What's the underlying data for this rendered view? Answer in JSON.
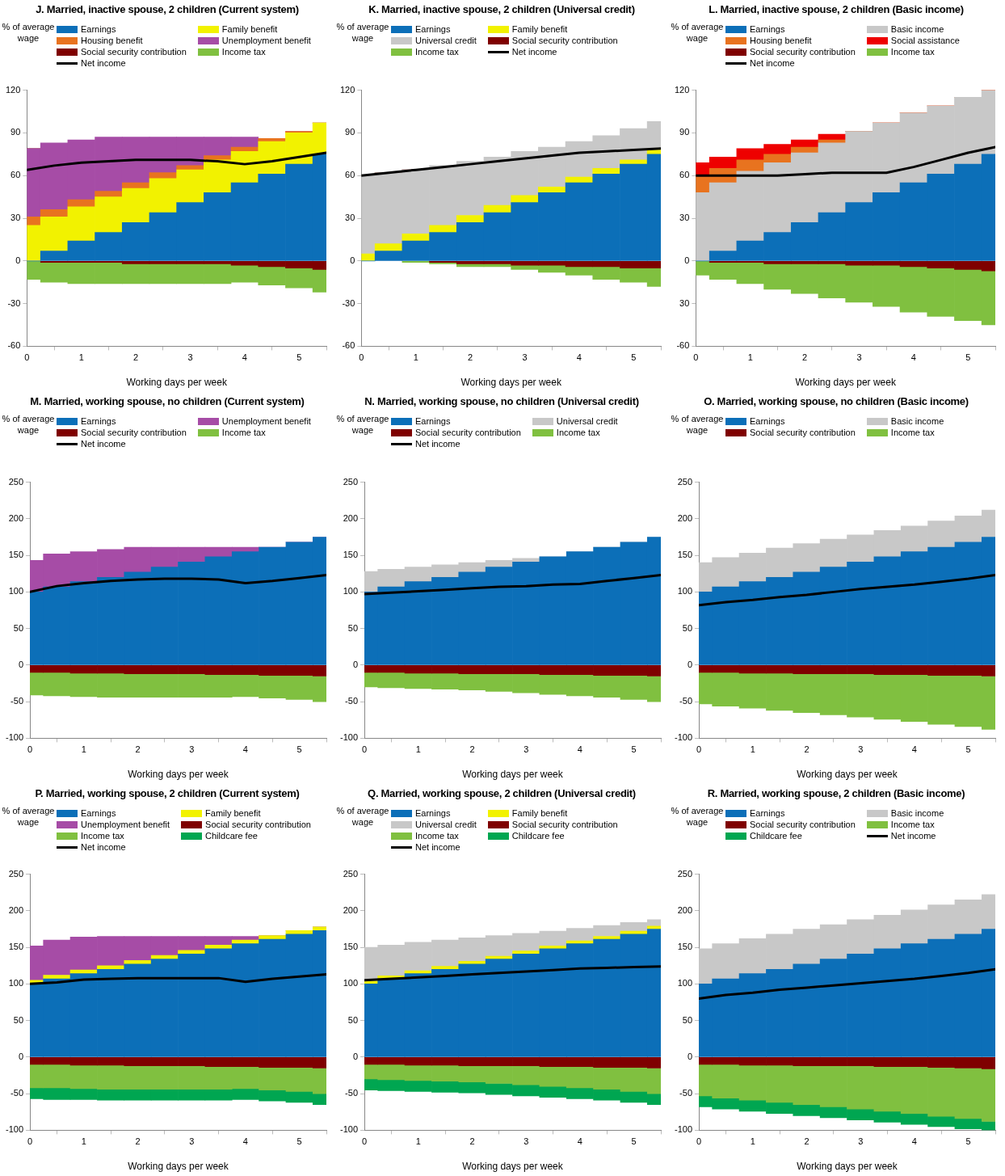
{
  "chart_data": [
    {
      "type": "bar",
      "stacked": true,
      "legend": "top",
      "title": "J. Married, inactive spouse, 2 children (Current system)",
      "ylabel": "% of average wage",
      "xlabel": "Working days per week",
      "x": [
        0,
        0.5,
        1,
        1.5,
        2,
        2.5,
        3,
        3.5,
        4,
        4.5,
        5,
        5.5
      ],
      "xlim": [
        0,
        5.5
      ],
      "xticks": [
        0,
        1,
        2,
        3,
        4,
        5
      ],
      "ylim": [
        -60,
        120
      ],
      "yticks": [
        -60,
        -30,
        0,
        30,
        60,
        90,
        120
      ],
      "series": [
        {
          "name": "Earnings",
          "color": "#0c6fb8",
          "values": [
            0,
            7,
            14,
            20,
            27,
            34,
            41,
            48,
            55,
            61,
            68,
            75
          ]
        },
        {
          "name": "Family benefit",
          "color": "#f2f200",
          "values": [
            25,
            24,
            24,
            25,
            24,
            24,
            23,
            23,
            22,
            23,
            22,
            22
          ]
        },
        {
          "name": "Housing benefit",
          "color": "#e8731f",
          "values": [
            6,
            5,
            5,
            4,
            4,
            4,
            3,
            3,
            3,
            2,
            1,
            0
          ]
        },
        {
          "name": "Unemployment benefit",
          "color": "#a64ca6",
          "values": [
            48,
            47,
            42,
            38,
            32,
            25,
            20,
            13,
            7,
            0,
            0,
            0
          ]
        },
        {
          "name": "Social security contribution",
          "color": "#7f0000",
          "values": [
            0,
            -1,
            -1,
            -1,
            -2,
            -2,
            -2,
            -2,
            -3,
            -4,
            -5,
            -6
          ]
        },
        {
          "name": "Income tax",
          "color": "#80c040",
          "values": [
            -13,
            -14,
            -15,
            -15,
            -14,
            -14,
            -14,
            -14,
            -12,
            -13,
            -14,
            -16
          ]
        },
        {
          "name": "Net income",
          "type": "line",
          "color": "#000000",
          "values": [
            64,
            67,
            69,
            70,
            71,
            71,
            71,
            70,
            68,
            70,
            73,
            76
          ]
        }
      ]
    },
    {
      "type": "bar",
      "stacked": true,
      "legend": "top",
      "title": "K. Married, inactive spouse, 2 children  (Universal credit)",
      "ylabel": "% of average wage",
      "xlabel": "Working days per week",
      "x": [
        0,
        0.5,
        1,
        1.5,
        2,
        2.5,
        3,
        3.5,
        4,
        4.5,
        5,
        5.5
      ],
      "xlim": [
        0,
        5.5
      ],
      "xticks": [
        0,
        1,
        2,
        3,
        4,
        5
      ],
      "ylim": [
        -60,
        120
      ],
      "yticks": [
        -60,
        -30,
        0,
        30,
        60,
        90,
        120
      ],
      "series": [
        {
          "name": "Earnings",
          "color": "#0c6fb8",
          "values": [
            0,
            7,
            14,
            20,
            27,
            34,
            41,
            48,
            55,
            61,
            68,
            75
          ]
        },
        {
          "name": "Family benefit",
          "color": "#f2f200",
          "values": [
            5,
            5,
            5,
            5,
            5,
            5,
            5,
            4,
            4,
            4,
            3,
            3
          ]
        },
        {
          "name": "Universal credit",
          "color": "#c8c8c8",
          "values": [
            55,
            50,
            45,
            42,
            38,
            34,
            31,
            28,
            25,
            23,
            22,
            20
          ]
        },
        {
          "name": "Social security contribution",
          "color": "#7f0000",
          "values": [
            0,
            0,
            0,
            -1,
            -2,
            -2,
            -3,
            -3,
            -4,
            -4,
            -5,
            -5
          ]
        },
        {
          "name": "Income tax",
          "color": "#80c040",
          "values": [
            0,
            0,
            -1,
            -1,
            -2,
            -2,
            -3,
            -5,
            -6,
            -9,
            -10,
            -13
          ]
        },
        {
          "name": "Net income",
          "type": "line",
          "color": "#000000",
          "values": [
            60,
            62,
            64,
            66,
            68,
            70,
            72,
            74,
            76,
            77,
            78,
            79
          ]
        }
      ]
    },
    {
      "type": "bar",
      "stacked": true,
      "legend": "top",
      "title": "L. Married, inactive spouse, 2 children (Basic income)",
      "ylabel": "% of average wage",
      "xlabel": "Working days per week",
      "x": [
        0,
        0.5,
        1,
        1.5,
        2,
        2.5,
        3,
        3.5,
        4,
        4.5,
        5,
        5.5
      ],
      "xlim": [
        0,
        5.5
      ],
      "xticks": [
        0,
        1,
        2,
        3,
        4,
        5
      ],
      "ylim": [
        -60,
        120
      ],
      "yticks": [
        -60,
        {
          "value": -30,
          "label": "30"
        },
        0,
        30,
        60,
        90,
        120
      ],
      "series": [
        {
          "name": "Earnings",
          "color": "#0c6fb8",
          "values": [
            0,
            7,
            14,
            20,
            27,
            34,
            41,
            48,
            55,
            61,
            68,
            75
          ]
        },
        {
          "name": "Basic income",
          "color": "#c8c8c8",
          "values": [
            48,
            48,
            49,
            49,
            49,
            49,
            50,
            49,
            49,
            48,
            47,
            45
          ]
        },
        {
          "name": "Housing benefit",
          "color": "#e8731f",
          "values": [
            12,
            10,
            8,
            6,
            4,
            2,
            0,
            0,
            0,
            0,
            0,
            0
          ]
        },
        {
          "name": "Social assistance",
          "color": "#ee0000",
          "values": [
            9,
            8,
            8,
            7,
            5,
            4,
            0,
            0,
            0,
            0,
            0,
            0
          ]
        },
        {
          "name": "Social security contribution",
          "color": "#7f0000",
          "values": [
            0,
            -1,
            -1,
            -2,
            -2,
            -2,
            -3,
            -3,
            -4,
            -5,
            -6,
            -7
          ]
        },
        {
          "name": "Income tax",
          "color": "#80c040",
          "values": [
            -10,
            -12,
            -15,
            -18,
            -21,
            -24,
            -26,
            -29,
            -32,
            -34,
            -36,
            -38
          ]
        },
        {
          "name": "Net income",
          "type": "line",
          "color": "#000000",
          "values": [
            60,
            60,
            60,
            60,
            61,
            62,
            62,
            62,
            66,
            71,
            76,
            80
          ]
        }
      ]
    },
    {
      "type": "bar",
      "stacked": true,
      "legend": "top",
      "title": "M. Married, working spouse, no children (Current system)",
      "ylabel": "% of average wage",
      "xlabel": "Working days per week",
      "x": [
        0,
        0.5,
        1,
        1.5,
        2,
        2.5,
        3,
        3.5,
        4,
        4.5,
        5,
        5.5
      ],
      "xlim": [
        0,
        5.5
      ],
      "xticks": [
        0,
        1,
        2,
        3,
        4,
        5
      ],
      "ylim": [
        -100,
        250
      ],
      "yticks": [
        -100,
        -50,
        0,
        50,
        100,
        150,
        200,
        250
      ],
      "series": [
        {
          "name": "Earnings",
          "color": "#0c6fb8",
          "values": [
            100,
            107,
            114,
            120,
            127,
            134,
            141,
            148,
            155,
            161,
            168,
            175
          ]
        },
        {
          "name": "Unemployment benefit",
          "color": "#a64ca6",
          "values": [
            43,
            45,
            41,
            38,
            34,
            27,
            20,
            13,
            6,
            0,
            0,
            0
          ]
        },
        {
          "name": "Social security contribution",
          "color": "#7f0000",
          "values": [
            -10,
            -10,
            -11,
            -11,
            -12,
            -12,
            -12,
            -13,
            -13,
            -14,
            -14,
            -15
          ]
        },
        {
          "name": "Income tax",
          "color": "#80c040",
          "values": [
            -31,
            -32,
            -32,
            -33,
            -32,
            -32,
            -32,
            -31,
            -30,
            -31,
            -33,
            -35
          ]
        },
        {
          "name": "Net income",
          "type": "line",
          "color": "#000000",
          "values": [
            100,
            108,
            112,
            115,
            117,
            118,
            118,
            117,
            112,
            115,
            119,
            123
          ]
        }
      ]
    },
    {
      "type": "bar",
      "stacked": true,
      "legend": "top",
      "title": "N. Married, working spouse, no children (Universal credit)",
      "ylabel": "% of average wage",
      "xlabel": "Working days per week",
      "x": [
        0,
        0.5,
        1,
        1.5,
        2,
        2.5,
        3,
        3.5,
        4,
        4.5,
        5,
        5.5
      ],
      "xlim": [
        0,
        5.5
      ],
      "xticks": [
        0,
        1,
        2,
        3,
        4,
        5
      ],
      "ylim": [
        -100,
        250
      ],
      "yticks": [
        -100,
        -50,
        0,
        50,
        100,
        150,
        200,
        250
      ],
      "series": [
        {
          "name": "Earnings",
          "color": "#0c6fb8",
          "values": [
            100,
            107,
            114,
            120,
            127,
            134,
            141,
            148,
            155,
            161,
            168,
            175
          ]
        },
        {
          "name": "Universal credit",
          "color": "#c8c8c8",
          "values": [
            28,
            24,
            20,
            17,
            13,
            9,
            5,
            0,
            0,
            0,
            0,
            0
          ]
        },
        {
          "name": "Social security contribution",
          "color": "#7f0000",
          "values": [
            -10,
            -10,
            -11,
            -11,
            -12,
            -12,
            -12,
            -13,
            -13,
            -14,
            -14,
            -15
          ]
        },
        {
          "name": "Income tax",
          "color": "#80c040",
          "values": [
            -20,
            -21,
            -21,
            -22,
            -22,
            -24,
            -26,
            -27,
            -29,
            -30,
            -33,
            -35
          ]
        },
        {
          "name": "Net income",
          "type": "line",
          "color": "#000000",
          "values": [
            97,
            99,
            101,
            103,
            105,
            107,
            108,
            110,
            111,
            115,
            119,
            123
          ]
        }
      ]
    },
    {
      "type": "bar",
      "stacked": true,
      "legend": "top",
      "title": "O. Married, working spouse, no children (Basic income)",
      "ylabel": "% of average wage",
      "xlabel": "Working days per week",
      "x": [
        0,
        0.5,
        1,
        1.5,
        2,
        2.5,
        3,
        3.5,
        4,
        4.5,
        5,
        5.5
      ],
      "xlim": [
        0,
        5.5
      ],
      "xticks": [
        0,
        1,
        2,
        3,
        4,
        5
      ],
      "ylim": [
        -100,
        250
      ],
      "yticks": [
        -100,
        -50,
        0,
        50,
        100,
        150,
        200,
        250
      ],
      "series": [
        {
          "name": "Earnings",
          "color": "#0c6fb8",
          "values": [
            100,
            107,
            114,
            120,
            127,
            134,
            141,
            148,
            155,
            161,
            168,
            175
          ]
        },
        {
          "name": "Basic income",
          "color": "#c8c8c8",
          "values": [
            40,
            40,
            39,
            40,
            39,
            38,
            37,
            36,
            35,
            36,
            36,
            37
          ]
        },
        {
          "name": "Social security contribution",
          "color": "#7f0000",
          "values": [
            -10,
            -10,
            -11,
            -11,
            -12,
            -12,
            -12,
            -13,
            -13,
            -14,
            -14,
            -15
          ]
        },
        {
          "name": "Income tax",
          "color": "#80c040",
          "values": [
            -43,
            -46,
            -48,
            -51,
            -53,
            -56,
            -59,
            -61,
            -64,
            -67,
            -70,
            -73
          ]
        },
        {
          "type": "line",
          "color": "#000000",
          "values": [
            82,
            86,
            89,
            93,
            96,
            100,
            104,
            107,
            110,
            114,
            118,
            123
          ]
        }
      ]
    },
    {
      "type": "bar",
      "stacked": true,
      "legend": "top",
      "title": "P. Married, working spouse, 2 children (Current system)",
      "ylabel": "% of average wage",
      "xlabel": "Working days per week",
      "x": [
        0,
        0.5,
        1,
        1.5,
        2,
        2.5,
        3,
        3.5,
        4,
        4.5,
        5,
        5.5
      ],
      "xlim": [
        0,
        5.5
      ],
      "xticks": [
        0,
        1,
        2,
        3,
        4,
        5
      ],
      "ylim": [
        -100,
        250
      ],
      "yticks": [
        -100,
        -50,
        0,
        50,
        100,
        150,
        200,
        250
      ],
      "series": [
        {
          "name": "Earnings",
          "color": "#0c6fb8",
          "values": [
            100,
            107,
            114,
            120,
            127,
            134,
            141,
            148,
            155,
            161,
            168,
            173
          ]
        },
        {
          "name": "Family benefit",
          "color": "#f2f200",
          "values": [
            5,
            5,
            5,
            5,
            5,
            5,
            5,
            5,
            5,
            5,
            5,
            5
          ]
        },
        {
          "name": "Unemployment benefit",
          "color": "#a64ca6",
          "values": [
            47,
            48,
            45,
            40,
            33,
            26,
            19,
            12,
            5,
            0,
            0,
            0
          ]
        },
        {
          "name": "Social security contribution",
          "color": "#7f0000",
          "values": [
            -10,
            -10,
            -11,
            -11,
            -12,
            -12,
            -12,
            -13,
            -13,
            -14,
            -14,
            -15
          ]
        },
        {
          "name": "Income tax",
          "color": "#80c040",
          "values": [
            -32,
            -32,
            -32,
            -33,
            -32,
            -32,
            -32,
            -31,
            -30,
            -31,
            -33,
            -35
          ]
        },
        {
          "name": "Childcare fee",
          "color": "#00a651",
          "values": [
            -15,
            -16,
            -15,
            -15,
            -15,
            -15,
            -15,
            -15,
            -15,
            -15,
            -15,
            -15
          ]
        },
        {
          "name": "Net income",
          "type": "line",
          "color": "#000000",
          "values": [
            100,
            102,
            106,
            107,
            108,
            108,
            108,
            108,
            103,
            107,
            110,
            113
          ]
        }
      ]
    },
    {
      "type": "bar",
      "stacked": true,
      "legend": "top",
      "title": "Q. Married, working spouse, 2 children (Universal credit)",
      "ylabel": "% of average wage",
      "xlabel": "Working days per week",
      "x": [
        0,
        0.5,
        1,
        1.5,
        2,
        2.5,
        3,
        3.5,
        4,
        4.5,
        5,
        5.5
      ],
      "xlim": [
        0,
        5.5
      ],
      "xticks": [
        0,
        1,
        2,
        3,
        4,
        5
      ],
      "ylim": [
        -100,
        250
      ],
      "yticks": [
        -100,
        -50,
        0,
        50,
        100,
        150,
        200,
        250
      ],
      "series": [
        {
          "name": "Earnings",
          "color": "#0c6fb8",
          "values": [
            100,
            107,
            114,
            120,
            127,
            134,
            141,
            148,
            155,
            161,
            168,
            175
          ]
        },
        {
          "name": "Family benefit",
          "color": "#f2f200",
          "values": [
            4,
            4,
            4,
            4,
            4,
            4,
            4,
            4,
            4,
            4,
            4,
            4
          ]
        },
        {
          "name": "Universal credit",
          "color": "#c8c8c8",
          "values": [
            46,
            42,
            39,
            36,
            32,
            28,
            24,
            20,
            17,
            15,
            12,
            9
          ]
        },
        {
          "name": "Social security contribution",
          "color": "#7f0000",
          "values": [
            -10,
            -10,
            -11,
            -11,
            -12,
            -12,
            -12,
            -13,
            -13,
            -14,
            -14,
            -15
          ]
        },
        {
          "name": "Income tax",
          "color": "#80c040",
          "values": [
            -20,
            -21,
            -21,
            -22,
            -22,
            -24,
            -26,
            -27,
            -29,
            -30,
            -33,
            -35
          ]
        },
        {
          "name": "Childcare fee",
          "color": "#00a651",
          "values": [
            -15,
            -15,
            -15,
            -15,
            -15,
            -15,
            -15,
            -15,
            -15,
            -15,
            -15,
            -15
          ]
        },
        {
          "name": "Net income",
          "type": "line",
          "color": "#000000",
          "values": [
            105,
            107,
            109,
            111,
            113,
            115,
            117,
            119,
            121,
            122,
            123,
            124
          ]
        }
      ]
    },
    {
      "type": "bar",
      "stacked": true,
      "legend": "top",
      "title": "R. Married, working spouse, 2 children (Basic income)",
      "ylabel": "% of average wage",
      "xlabel": "Working days per week",
      "x": [
        0,
        0.5,
        1,
        1.5,
        2,
        2.5,
        3,
        3.5,
        4,
        4.5,
        5,
        5.5
      ],
      "xlim": [
        0,
        5.5
      ],
      "xticks": [
        0,
        1,
        2,
        3,
        4,
        5
      ],
      "ylim": [
        -100,
        250
      ],
      "yticks": [
        -100,
        -50,
        0,
        50,
        100,
        150,
        200,
        250
      ],
      "series": [
        {
          "name": "Earnings",
          "color": "#0c6fb8",
          "values": [
            100,
            107,
            114,
            120,
            127,
            134,
            141,
            148,
            155,
            161,
            168,
            175
          ]
        },
        {
          "name": "Basic income",
          "color": "#c8c8c8",
          "values": [
            48,
            48,
            48,
            48,
            48,
            47,
            47,
            46,
            46,
            47,
            47,
            47
          ]
        },
        {
          "name": "Social security contribution",
          "color": "#7f0000",
          "values": [
            -10,
            -10,
            -11,
            -11,
            -12,
            -12,
            -12,
            -13,
            -13,
            -14,
            -15,
            -16
          ]
        },
        {
          "name": "Income tax",
          "color": "#80c040",
          "values": [
            -43,
            -46,
            -48,
            -51,
            -53,
            -56,
            -59,
            -61,
            -64,
            -67,
            -69,
            -72
          ]
        },
        {
          "name": "Childcare fee",
          "color": "#00a651",
          "values": [
            -15,
            -15,
            -15,
            -15,
            -15,
            -15,
            -15,
            -15,
            -15,
            -14,
            -14,
            -12
          ]
        },
        {
          "name": "Net income",
          "type": "line",
          "color": "#000000",
          "values": [
            80,
            85,
            88,
            92,
            95,
            98,
            101,
            104,
            107,
            111,
            115,
            120
          ]
        }
      ]
    }
  ]
}
